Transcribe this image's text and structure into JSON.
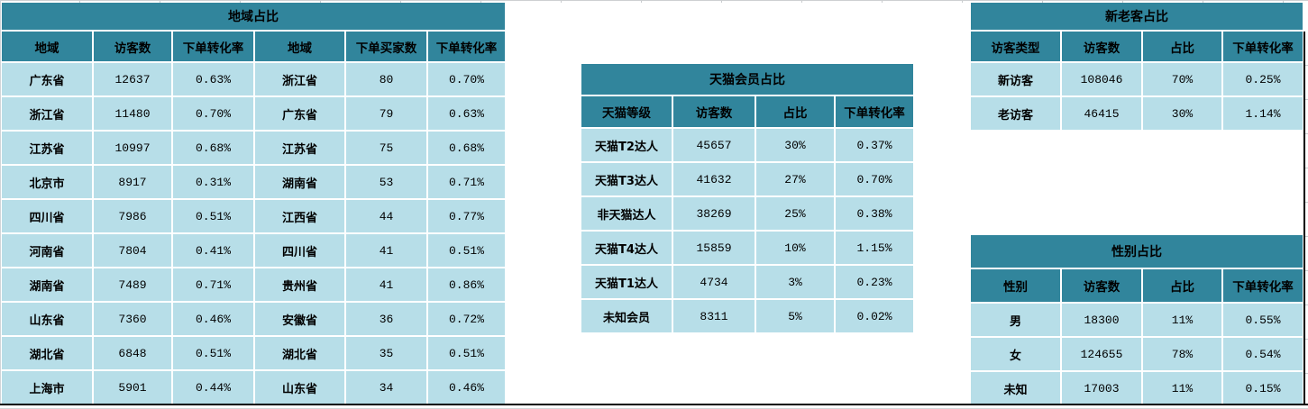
{
  "colors": {
    "header_bg": "#31859C",
    "row_bg": "#B7DEE8",
    "border": "#000000"
  },
  "region_table": {
    "title": "地域占比",
    "headers": [
      "地域",
      "访客数",
      "下单转化率",
      "地域",
      "下单买家数",
      "下单转化率"
    ],
    "rows": [
      [
        "广东省",
        "12637",
        "0.63%",
        "浙江省",
        "80",
        "0.70%"
      ],
      [
        "浙江省",
        "11480",
        "0.70%",
        "广东省",
        "79",
        "0.63%"
      ],
      [
        "江苏省",
        "10997",
        "0.68%",
        "江苏省",
        "75",
        "0.68%"
      ],
      [
        "北京市",
        "8917",
        "0.31%",
        "湖南省",
        "53",
        "0.71%"
      ],
      [
        "四川省",
        "7986",
        "0.51%",
        "江西省",
        "44",
        "0.77%"
      ],
      [
        "河南省",
        "7804",
        "0.41%",
        "四川省",
        "41",
        "0.51%"
      ],
      [
        "湖南省",
        "7489",
        "0.71%",
        "贵州省",
        "41",
        "0.86%"
      ],
      [
        "山东省",
        "7360",
        "0.46%",
        "安徽省",
        "36",
        "0.72%"
      ],
      [
        "湖北省",
        "6848",
        "0.51%",
        "湖北省",
        "35",
        "0.51%"
      ],
      [
        "上海市",
        "5901",
        "0.44%",
        "山东省",
        "34",
        "0.46%"
      ]
    ]
  },
  "tmall_table": {
    "title": "天猫会员占比",
    "headers": [
      "天猫等级",
      "访客数",
      "占比",
      "下单转化率"
    ],
    "rows": [
      [
        "天猫T2达人",
        "45657",
        "30%",
        "0.37%"
      ],
      [
        "天猫T3达人",
        "41632",
        "27%",
        "0.70%"
      ],
      [
        "非天猫达人",
        "38269",
        "25%",
        "0.38%"
      ],
      [
        "天猫T4达人",
        "15859",
        "10%",
        "1.15%"
      ],
      [
        "天猫T1达人",
        "4734",
        "3%",
        "0.23%"
      ],
      [
        "未知会员",
        "8311",
        "5%",
        "0.02%"
      ]
    ]
  },
  "visitor_type_table": {
    "title": "新老客占比",
    "headers": [
      "访客类型",
      "访客数",
      "占比",
      "下单转化率"
    ],
    "rows": [
      [
        "新访客",
        "108046",
        "70%",
        "0.25%"
      ],
      [
        "老访客",
        "46415",
        "30%",
        "1.14%"
      ]
    ]
  },
  "gender_table": {
    "title": "性别占比",
    "headers": [
      "性别",
      "访客数",
      "占比",
      "下单转化率"
    ],
    "rows": [
      [
        "男",
        "18300",
        "11%",
        "0.55%"
      ],
      [
        "女",
        "124655",
        "78%",
        "0.54%"
      ],
      [
        "未知",
        "17003",
        "11%",
        "0.15%"
      ]
    ]
  }
}
